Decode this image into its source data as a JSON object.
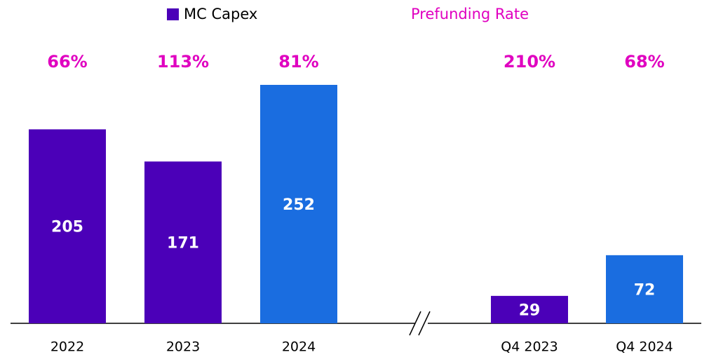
{
  "chart_data": {
    "type": "bar",
    "categories": [
      "2022",
      "2023",
      "2024",
      "Q4 2023",
      "Q4 2024"
    ],
    "series": [
      {
        "name": "MC Capex",
        "color": "#4b00b8",
        "colors": [
          "#4b00b8",
          "#4b00b8",
          "#1a6de0",
          "#4b00b8",
          "#1a6de0"
        ],
        "values": [
          205,
          171,
          252,
          29,
          72
        ]
      },
      {
        "name": "Prefunding Rate",
        "color": "#e000c0",
        "values": [
          66,
          113,
          81,
          210,
          68
        ],
        "value_labels": [
          "66%",
          "113%",
          "81%",
          "210%",
          "68%"
        ]
      }
    ]
  }
}
